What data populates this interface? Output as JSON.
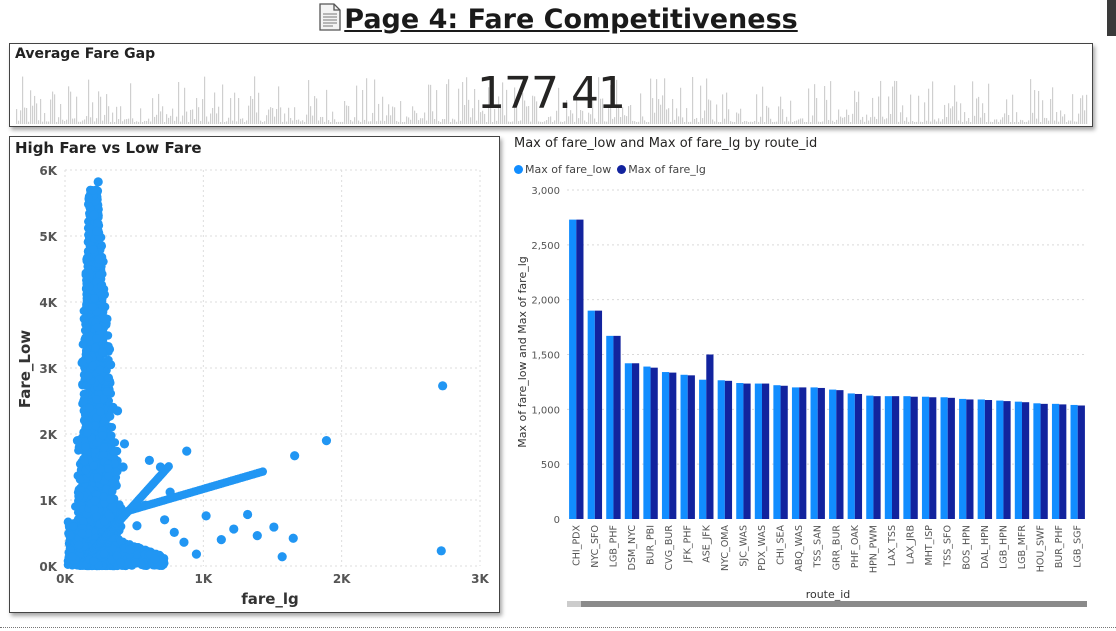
{
  "page": {
    "title": "Page 4: Fare Competitiveness",
    "title_icon": "document-icon"
  },
  "kpi": {
    "title": "Average Fare Gap",
    "value": "177.41"
  },
  "colors": {
    "fare_low": "#118DFF",
    "fare_lg": "#12239E",
    "scatter_point": "#2196F3"
  },
  "chart_data": [
    {
      "type": "scatter",
      "title": "High Fare vs Low Fare",
      "xlabel": "fare_lg",
      "ylabel": "Fare_Low",
      "xlim": [
        0,
        3000
      ],
      "ylim": [
        0,
        6000
      ],
      "x_ticks": [
        "0K",
        "1K",
        "2K",
        "3K"
      ],
      "y_ticks": [
        "0K",
        "1K",
        "2K",
        "3K",
        "4K",
        "5K",
        "6K"
      ],
      "grid": true,
      "note_dense_cluster": "thousands of points concentrated between fare_lg 0-500, fare_low 0-5900",
      "points": [
        {
          "x": 2730,
          "y": 2730
        },
        {
          "x": 2720,
          "y": 230
        },
        {
          "x": 1890,
          "y": 1900
        },
        {
          "x": 1660,
          "y": 1670
        },
        {
          "x": 1650,
          "y": 420
        },
        {
          "x": 1570,
          "y": 140
        },
        {
          "x": 1510,
          "y": 590
        },
        {
          "x": 1390,
          "y": 460
        },
        {
          "x": 1320,
          "y": 780
        },
        {
          "x": 1220,
          "y": 560
        },
        {
          "x": 1130,
          "y": 400
        },
        {
          "x": 1020,
          "y": 760
        },
        {
          "x": 950,
          "y": 180
        },
        {
          "x": 860,
          "y": 360
        },
        {
          "x": 790,
          "y": 510
        },
        {
          "x": 720,
          "y": 700
        },
        {
          "x": 650,
          "y": 110
        },
        {
          "x": 580,
          "y": 920
        },
        {
          "x": 520,
          "y": 610
        },
        {
          "x": 470,
          "y": 250
        },
        {
          "x": 430,
          "y": 1850
        },
        {
          "x": 380,
          "y": 2350
        },
        {
          "x": 420,
          "y": 1500
        },
        {
          "x": 330,
          "y": 3050
        },
        {
          "x": 290,
          "y": 3750
        },
        {
          "x": 250,
          "y": 4650
        },
        {
          "x": 240,
          "y": 5820
        },
        {
          "x": 210,
          "y": 5320
        },
        {
          "x": 230,
          "y": 5070
        },
        {
          "x": 90,
          "y": 1900
        },
        {
          "x": 100,
          "y": 1060
        },
        {
          "x": 610,
          "y": 1600
        },
        {
          "x": 690,
          "y": 1500
        },
        {
          "x": 880,
          "y": 1740
        },
        {
          "x": 760,
          "y": 1120
        }
      ],
      "trend_segments": [
        {
          "from": [
            400,
            800
          ],
          "to": [
            1430,
            1430
          ]
        },
        {
          "from": [
            200,
            230
          ],
          "to": [
            750,
            1510
          ]
        }
      ]
    },
    {
      "type": "bar",
      "title": "Max of fare_low and Max of fare_lg by route_id",
      "xlabel": "route_id",
      "ylabel": "Max of fare_low and Max of fare_lg",
      "ylim": [
        0,
        3000
      ],
      "y_ticks": [
        "0",
        "500",
        "1,000",
        "1,500",
        "2,000",
        "2,500",
        "3,000"
      ],
      "grid": true,
      "legend_placement": "top-left",
      "categories": [
        "CHI_PDX",
        "NYC_SFO",
        "LGB_PHF",
        "DSM_NYC",
        "BUR_PBI",
        "CVG_BUR",
        "JFK_PHF",
        "ASE_JFK",
        "NYC_OMA",
        "SJC_WAS",
        "PDX_WAS",
        "CHI_SEA",
        "ABQ_WAS",
        "TSS_SAN",
        "GRR_BUR",
        "PHF_OAK",
        "HPN_PWM",
        "LAX_TSS",
        "LAX_JRB",
        "MHT_ISP",
        "TSS_SFO",
        "BOS_HPN",
        "DAL_HPN",
        "LGB_HPN",
        "LGB_MFR",
        "HOU_SWF",
        "BUR_PHF",
        "LGB_SGF"
      ],
      "series": [
        {
          "name": "Max of fare_low",
          "values": [
            2730,
            1900,
            1670,
            1420,
            1390,
            1340,
            1315,
            1270,
            1265,
            1240,
            1235,
            1220,
            1200,
            1200,
            1180,
            1145,
            1125,
            1120,
            1120,
            1115,
            1110,
            1095,
            1090,
            1080,
            1070,
            1055,
            1050,
            1040
          ]
        },
        {
          "name": "Max of fare_lg",
          "values": [
            2730,
            1900,
            1670,
            1420,
            1380,
            1335,
            1310,
            1500,
            1260,
            1235,
            1235,
            1215,
            1200,
            1195,
            1175,
            1140,
            1120,
            1120,
            1115,
            1110,
            1105,
            1090,
            1085,
            1075,
            1065,
            1050,
            1045,
            1035
          ]
        }
      ]
    }
  ]
}
